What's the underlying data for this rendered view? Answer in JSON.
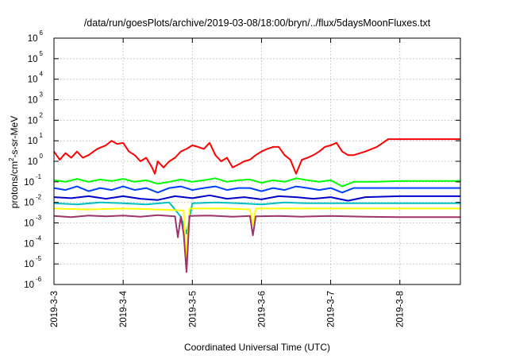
{
  "chart_data": {
    "type": "line",
    "title": "/data/run/goesPlots/archive/2019-03-08/18:00/bryn/../flux/5daysMoonFluxes.txt",
    "xlabel": "Coordinated Universal Time (UTC)",
    "ylabel": "protons/cm2-s-sr-MeV",
    "ylabel_parts": {
      "pre": "protons/cm",
      "sup": "2",
      "post": "-s-sr-MeV"
    },
    "yscale": "log",
    "ylim": [
      1e-06,
      1000000.0
    ],
    "xlim": [
      "2019-3-3",
      "2019-3-8 21:00"
    ],
    "grid": true,
    "x_tick_labels": [
      "2019-3-3",
      "2019-3-4",
      "2019-3-5",
      "2019-3-6",
      "2019-3-7",
      "2019-3-8"
    ],
    "y_tick_labels": [
      {
        "base": "10",
        "exp": "-6"
      },
      {
        "base": "10",
        "exp": "-5"
      },
      {
        "base": "10",
        "exp": "-4"
      },
      {
        "base": "10",
        "exp": "-3"
      },
      {
        "base": "10",
        "exp": "-2"
      },
      {
        "base": "10",
        "exp": "-1"
      },
      {
        "base": "10",
        "exp": "0"
      },
      {
        "base": "10",
        "exp": "1"
      },
      {
        "base": "10",
        "exp": "2"
      },
      {
        "base": "10",
        "exp": "3"
      },
      {
        "base": "10",
        "exp": "4"
      },
      {
        "base": "10",
        "exp": "5"
      },
      {
        "base": "10",
        "exp": "6"
      }
    ],
    "series": [
      {
        "color": "#ff0000",
        "points": [
          [
            "2019-3-3 00:00",
            3
          ],
          [
            "2019-3-3 02:00",
            1.2
          ],
          [
            "2019-3-3 04:00",
            2.5
          ],
          [
            "2019-3-3 06:00",
            1.5
          ],
          [
            "2019-3-3 08:00",
            3
          ],
          [
            "2019-3-3 10:00",
            1.5
          ],
          [
            "2019-3-3 12:00",
            2
          ],
          [
            "2019-3-3 15:00",
            4
          ],
          [
            "2019-3-3 18:00",
            6
          ],
          [
            "2019-3-3 20:00",
            10
          ],
          [
            "2019-3-3 22:00",
            7
          ],
          [
            "2019-3-4 00:00",
            8
          ],
          [
            "2019-3-4 02:00",
            3
          ],
          [
            "2019-3-4 04:00",
            2
          ],
          [
            "2019-3-4 06:00",
            1
          ],
          [
            "2019-3-4 08:00",
            1.5
          ],
          [
            "2019-3-4 10:00",
            0.5
          ],
          [
            "2019-3-4 11:00",
            0.25
          ],
          [
            "2019-3-4 12:00",
            1
          ],
          [
            "2019-3-4 14:00",
            0.5
          ],
          [
            "2019-3-4 16:00",
            1
          ],
          [
            "2019-3-4 18:00",
            1.5
          ],
          [
            "2019-3-4 20:00",
            3
          ],
          [
            "2019-3-4 22:00",
            4
          ],
          [
            "2019-3-5 00:00",
            6
          ],
          [
            "2019-3-5 02:00",
            5
          ],
          [
            "2019-3-5 04:00",
            4
          ],
          [
            "2019-3-5 06:00",
            8
          ],
          [
            "2019-3-5 08:00",
            2
          ],
          [
            "2019-3-5 10:00",
            1
          ],
          [
            "2019-3-5 12:00",
            1.5
          ],
          [
            "2019-3-5 14:00",
            0.5
          ],
          [
            "2019-3-5 16:00",
            0.7
          ],
          [
            "2019-3-5 18:00",
            1
          ],
          [
            "2019-3-5 20:00",
            1.2
          ],
          [
            "2019-3-5 22:00",
            2
          ],
          [
            "2019-3-6 00:00",
            3
          ],
          [
            "2019-3-6 02:00",
            4
          ],
          [
            "2019-3-6 04:00",
            5
          ],
          [
            "2019-3-6 06:00",
            5
          ],
          [
            "2019-3-6 08:00",
            2
          ],
          [
            "2019-3-6 10:00",
            1.2
          ],
          [
            "2019-3-6 12:00",
            0.25
          ],
          [
            "2019-3-6 14:00",
            1.2
          ],
          [
            "2019-3-6 16:00",
            1.5
          ],
          [
            "2019-3-6 18:00",
            2
          ],
          [
            "2019-3-6 20:00",
            3
          ],
          [
            "2019-3-6 22:00",
            5
          ],
          [
            "2019-3-7 00:00",
            6
          ],
          [
            "2019-3-7 02:00",
            8
          ],
          [
            "2019-3-7 04:00",
            3
          ],
          [
            "2019-3-7 06:00",
            2
          ],
          [
            "2019-3-7 08:00",
            2
          ],
          [
            "2019-3-7 12:00",
            3
          ],
          [
            "2019-3-7 16:00",
            5
          ],
          [
            "2019-3-7 20:00",
            12
          ],
          [
            "2019-3-8 00:00",
            12
          ],
          [
            "2019-3-8 21:00",
            12
          ]
        ]
      },
      {
        "color": "#00ff00",
        "points": [
          [
            "2019-3-3 00:00",
            0.12
          ],
          [
            "2019-3-3 04:00",
            0.1
          ],
          [
            "2019-3-3 08:00",
            0.14
          ],
          [
            "2019-3-3 12:00",
            0.1
          ],
          [
            "2019-3-3 16:00",
            0.13
          ],
          [
            "2019-3-3 20:00",
            0.11
          ],
          [
            "2019-3-4 00:00",
            0.14
          ],
          [
            "2019-3-4 04:00",
            0.1
          ],
          [
            "2019-3-4 08:00",
            0.12
          ],
          [
            "2019-3-4 12:00",
            0.08
          ],
          [
            "2019-3-4 16:00",
            0.1
          ],
          [
            "2019-3-4 20:00",
            0.13
          ],
          [
            "2019-3-5 00:00",
            0.1
          ],
          [
            "2019-3-5 04:00",
            0.12
          ],
          [
            "2019-3-5 08:00",
            0.15
          ],
          [
            "2019-3-5 12:00",
            0.1
          ],
          [
            "2019-3-5 16:00",
            0.12
          ],
          [
            "2019-3-5 20:00",
            0.13
          ],
          [
            "2019-3-6 00:00",
            0.09
          ],
          [
            "2019-3-6 04:00",
            0.12
          ],
          [
            "2019-3-6 08:00",
            0.1
          ],
          [
            "2019-3-6 12:00",
            0.15
          ],
          [
            "2019-3-6 16:00",
            0.12
          ],
          [
            "2019-3-6 20:00",
            0.1
          ],
          [
            "2019-3-7 00:00",
            0.12
          ],
          [
            "2019-3-7 04:00",
            0.06
          ],
          [
            "2019-3-7 08:00",
            0.1
          ],
          [
            "2019-3-7 16:00",
            0.1
          ],
          [
            "2019-3-8 00:00",
            0.11
          ],
          [
            "2019-3-8 21:00",
            0.11
          ]
        ]
      },
      {
        "color": "#0040ff",
        "points": [
          [
            "2019-3-3 00:00",
            0.05
          ],
          [
            "2019-3-3 04:00",
            0.04
          ],
          [
            "2019-3-3 08:00",
            0.06
          ],
          [
            "2019-3-3 12:00",
            0.035
          ],
          [
            "2019-3-3 16:00",
            0.05
          ],
          [
            "2019-3-3 20:00",
            0.04
          ],
          [
            "2019-3-4 00:00",
            0.06
          ],
          [
            "2019-3-4 04:00",
            0.04
          ],
          [
            "2019-3-4 08:00",
            0.05
          ],
          [
            "2019-3-4 12:00",
            0.03
          ],
          [
            "2019-3-4 16:00",
            0.05
          ],
          [
            "2019-3-4 20:00",
            0.06
          ],
          [
            "2019-3-5 00:00",
            0.04
          ],
          [
            "2019-3-5 04:00",
            0.05
          ],
          [
            "2019-3-5 08:00",
            0.06
          ],
          [
            "2019-3-5 12:00",
            0.04
          ],
          [
            "2019-3-5 16:00",
            0.05
          ],
          [
            "2019-3-5 20:00",
            0.05
          ],
          [
            "2019-3-6 00:00",
            0.035
          ],
          [
            "2019-3-6 04:00",
            0.05
          ],
          [
            "2019-3-6 08:00",
            0.04
          ],
          [
            "2019-3-6 12:00",
            0.06
          ],
          [
            "2019-3-6 16:00",
            0.05
          ],
          [
            "2019-3-6 20:00",
            0.04
          ],
          [
            "2019-3-7 00:00",
            0.05
          ],
          [
            "2019-3-7 04:00",
            0.03
          ],
          [
            "2019-3-7 08:00",
            0.05
          ],
          [
            "2019-3-7 16:00",
            0.05
          ],
          [
            "2019-3-8 00:00",
            0.05
          ],
          [
            "2019-3-8 21:00",
            0.05
          ]
        ]
      },
      {
        "color": "#0000cc",
        "points": [
          [
            "2019-3-3 00:00",
            0.018
          ],
          [
            "2019-3-3 06:00",
            0.016
          ],
          [
            "2019-3-3 12:00",
            0.02
          ],
          [
            "2019-3-3 18:00",
            0.015
          ],
          [
            "2019-3-4 00:00",
            0.02
          ],
          [
            "2019-3-4 06:00",
            0.015
          ],
          [
            "2019-3-4 12:00",
            0.013
          ],
          [
            "2019-3-4 18:00",
            0.02
          ],
          [
            "2019-3-5 00:00",
            0.016
          ],
          [
            "2019-3-5 06:00",
            0.022
          ],
          [
            "2019-3-5 12:00",
            0.015
          ],
          [
            "2019-3-5 18:00",
            0.018
          ],
          [
            "2019-3-6 00:00",
            0.014
          ],
          [
            "2019-3-6 06:00",
            0.02
          ],
          [
            "2019-3-6 12:00",
            0.018
          ],
          [
            "2019-3-6 18:00",
            0.015
          ],
          [
            "2019-3-7 00:00",
            0.018
          ],
          [
            "2019-3-7 06:00",
            0.012
          ],
          [
            "2019-3-7 12:00",
            0.018
          ],
          [
            "2019-3-8 00:00",
            0.02
          ],
          [
            "2019-3-8 21:00",
            0.02
          ]
        ]
      },
      {
        "color": "#00c0c0",
        "points": [
          [
            "2019-3-3 00:00",
            0.009
          ],
          [
            "2019-3-3 08:00",
            0.008
          ],
          [
            "2019-3-3 16:00",
            0.01
          ],
          [
            "2019-3-4 00:00",
            0.009
          ],
          [
            "2019-3-4 08:00",
            0.008
          ],
          [
            "2019-3-4 16:00",
            0.01
          ],
          [
            "2019-3-4 20:00",
            0.002
          ],
          [
            "2019-3-4 22:00",
            0.0003
          ],
          [
            "2019-3-5 00:00",
            0.009
          ],
          [
            "2019-3-5 08:00",
            0.01
          ],
          [
            "2019-3-5 16:00",
            0.009
          ],
          [
            "2019-3-6 00:00",
            0.008
          ],
          [
            "2019-3-6 08:00",
            0.01
          ],
          [
            "2019-3-6 16:00",
            0.009
          ],
          [
            "2019-3-7 00:00",
            0.009
          ],
          [
            "2019-3-7 12:00",
            0.009
          ],
          [
            "2019-3-8 00:00",
            0.009
          ],
          [
            "2019-3-8 21:00",
            0.009
          ]
        ]
      },
      {
        "color": "#ffff00",
        "points": [
          [
            "2019-3-3 00:00",
            0.005
          ],
          [
            "2019-3-3 12:00",
            0.0045
          ],
          [
            "2019-3-4 00:00",
            0.005
          ],
          [
            "2019-3-4 12:00",
            0.0045
          ],
          [
            "2019-3-4 21:00",
            0.004
          ],
          [
            "2019-3-4 22:00",
            2e-05
          ],
          [
            "2019-3-4 23:00",
            0.005
          ],
          [
            "2019-3-5 12:00",
            0.005
          ],
          [
            "2019-3-5 20:00",
            0.0045
          ],
          [
            "2019-3-5 21:00",
            0.0008
          ],
          [
            "2019-3-5 22:00",
            0.005
          ],
          [
            "2019-3-6 12:00",
            0.005
          ],
          [
            "2019-3-7 00:00",
            0.005
          ],
          [
            "2019-3-8 00:00",
            0.005
          ],
          [
            "2019-3-8 21:00",
            0.005
          ]
        ]
      },
      {
        "color": "#a0336b",
        "points": [
          [
            "2019-3-3 00:00",
            0.0022
          ],
          [
            "2019-3-3 06:00",
            0.0019
          ],
          [
            "2019-3-3 12:00",
            0.0023
          ],
          [
            "2019-3-3 18:00",
            0.0021
          ],
          [
            "2019-3-4 00:00",
            0.0023
          ],
          [
            "2019-3-4 06:00",
            0.002
          ],
          [
            "2019-3-4 12:00",
            0.0024
          ],
          [
            "2019-3-4 18:00",
            0.0021
          ],
          [
            "2019-3-4 19:00",
            0.0002
          ],
          [
            "2019-3-4 20:00",
            0.002
          ],
          [
            "2019-3-4 21:00",
            0.0003
          ],
          [
            "2019-3-4 22:00",
            4e-06
          ],
          [
            "2019-3-4 23:00",
            0.0022
          ],
          [
            "2019-3-5 06:00",
            0.0023
          ],
          [
            "2019-3-5 14:00",
            0.002
          ],
          [
            "2019-3-5 20:00",
            0.0022
          ],
          [
            "2019-3-5 21:00",
            0.00025
          ],
          [
            "2019-3-5 22:00",
            0.0021
          ],
          [
            "2019-3-6 06:00",
            0.0022
          ],
          [
            "2019-3-6 14:00",
            0.002
          ],
          [
            "2019-3-7 00:00",
            0.0022
          ],
          [
            "2019-3-7 12:00",
            0.002
          ],
          [
            "2019-3-8 00:00",
            0.0019
          ],
          [
            "2019-3-8 21:00",
            0.0019
          ]
        ]
      }
    ]
  }
}
